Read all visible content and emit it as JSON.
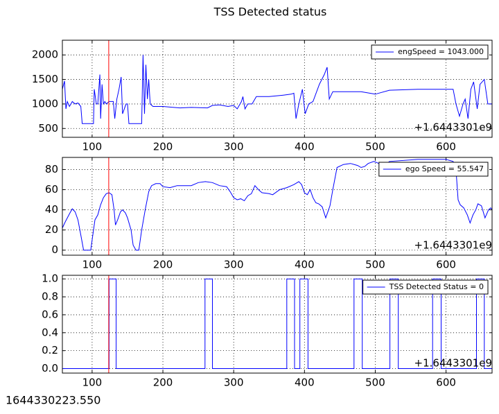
{
  "title": "TSS Detected status",
  "timestamp": "1644330223.550",
  "chart_data": [
    {
      "type": "line",
      "legend": "upper right",
      "grid": true,
      "offset_text": "+1.6443301e9",
      "xlim": [
        58,
        665
      ],
      "xticks": [
        100,
        200,
        300,
        400,
        500,
        600
      ],
      "ylim": [
        320,
        2300
      ],
      "yticks": [
        500,
        1000,
        1500,
        2000
      ],
      "vline_x": 123.5,
      "vline_color": "#ff0000",
      "series": [
        {
          "name": "engSpeed = 1043.000",
          "color": "#0000ff",
          "x": [
            58,
            61,
            63,
            65,
            68,
            72,
            76,
            80,
            84,
            86,
            87,
            102,
            103,
            106,
            108,
            111,
            112,
            114,
            116,
            118,
            120,
            124,
            130,
            132,
            135,
            138,
            141,
            143,
            148,
            150,
            152,
            156,
            159,
            170,
            172,
            174,
            176,
            178,
            180,
            182,
            186,
            200,
            224,
            240,
            263,
            270,
            280,
            292,
            300,
            305,
            311,
            313,
            316,
            320,
            326,
            332,
            350,
            370,
            381,
            385,
            388,
            392,
            397,
            401,
            406,
            412,
            421,
            428,
            432,
            435,
            440,
            460,
            480,
            500,
            520,
            560,
            600,
            610,
            614,
            619,
            624,
            627,
            631,
            635,
            639,
            644,
            648,
            654,
            659,
            662,
            665
          ],
          "values": [
            1300,
            1470,
            900,
            1050,
            950,
            1050,
            1000,
            1020,
            950,
            600,
            600,
            600,
            1300,
            1000,
            1000,
            1600,
            700,
            1400,
            1000,
            1050,
            1000,
            1050,
            1050,
            700,
            1100,
            1300,
            1550,
            800,
            1000,
            1000,
            600,
            600,
            600,
            600,
            2000,
            800,
            1800,
            1100,
            1500,
            1000,
            950,
            950,
            920,
            930,
            920,
            970,
            980,
            950,
            970,
            900,
            1050,
            1150,
            900,
            1000,
            1000,
            1150,
            1150,
            1180,
            1200,
            1220,
            700,
            1000,
            1300,
            800,
            1000,
            1050,
            1400,
            1600,
            1750,
            1100,
            1250,
            1250,
            1250,
            1200,
            1280,
            1300,
            1300,
            1300,
            1000,
            750,
            1000,
            1100,
            700,
            1300,
            1450,
            900,
            1400,
            1500,
            1000,
            1000,
            1000
          ]
        }
      ]
    },
    {
      "type": "line",
      "legend": "upper right",
      "grid": true,
      "offset_text": "+1.6443301e9",
      "xlim": [
        58,
        665
      ],
      "xticks": [
        100,
        200,
        300,
        400,
        500,
        600
      ],
      "ylim": [
        -5,
        92
      ],
      "yticks": [
        0,
        20,
        40,
        60,
        80
      ],
      "vline_x": 123.5,
      "vline_color": "#ff0000",
      "series": [
        {
          "name": "ego Speed = 55.547",
          "color": "#0000ff",
          "x": [
            58,
            62,
            68,
            72,
            76,
            80,
            84,
            88,
            98,
            100,
            104,
            108,
            112,
            116,
            120,
            124,
            128,
            131,
            133,
            136,
            140,
            143,
            147,
            150,
            155,
            158,
            162,
            166,
            170,
            175,
            180,
            184,
            190,
            196,
            200,
            210,
            220,
            240,
            250,
            260,
            270,
            280,
            290,
            295,
            300,
            305,
            310,
            315,
            320,
            325,
            330,
            335,
            340,
            350,
            355,
            365,
            375,
            385,
            392,
            396,
            400,
            404,
            408,
            412,
            416,
            420,
            425,
            430,
            436,
            440,
            446,
            455,
            465,
            475,
            480,
            485,
            490,
            498,
            505,
            510,
            520,
            560,
            600,
            610,
            614,
            617,
            620,
            625,
            630,
            634,
            638,
            642,
            645,
            650,
            655,
            660,
            663,
            665
          ],
          "values": [
            22,
            28,
            36,
            41,
            38,
            30,
            15,
            0,
            0,
            10,
            30,
            35,
            45,
            52,
            56,
            57,
            55,
            40,
            25,
            30,
            38,
            40,
            37,
            32,
            20,
            5,
            0,
            0,
            20,
            40,
            58,
            64,
            66,
            66,
            63,
            62,
            64,
            64,
            67,
            68,
            67,
            64,
            63,
            58,
            52,
            50,
            51,
            49,
            54,
            56,
            64,
            60,
            57,
            56,
            55,
            60,
            62,
            65,
            68,
            65,
            57,
            55,
            60,
            52,
            47,
            46,
            43,
            32,
            44,
            60,
            82,
            85,
            86,
            84,
            82,
            83,
            86,
            88,
            86,
            82,
            88,
            90,
            90,
            88,
            80,
            50,
            45,
            42,
            35,
            27,
            35,
            40,
            46,
            44,
            32,
            40,
            42,
            40
          ]
        }
      ]
    },
    {
      "type": "line",
      "legend": "upper right",
      "grid": true,
      "offset_text": "+1.6443301e9",
      "xlim": [
        58,
        665
      ],
      "xticks": [
        100,
        200,
        300,
        400,
        500,
        600
      ],
      "ylim": [
        -0.05,
        1.04
      ],
      "yticks": [
        {
          "value": 0,
          "label": "0.0"
        },
        {
          "value": 0.2,
          "label": "0.2"
        },
        {
          "value": 0.4,
          "label": "0.4"
        },
        {
          "value": 0.6,
          "label": "0.6"
        },
        {
          "value": 0.8,
          "label": "0.8"
        },
        {
          "value": 1,
          "label": "1.0"
        }
      ],
      "vline_x": 123.5,
      "vline_color": "#ff0000",
      "series": [
        {
          "name": "TSS Detected Status = 0",
          "color": "#0000ff",
          "x": [
            58,
            124,
            124,
            134,
            134,
            259.5,
            259.5,
            270,
            270,
            375,
            375,
            386,
            386,
            393.5,
            393.5,
            405,
            405,
            470,
            470,
            481.6,
            481.6,
            520.7,
            520.7,
            532.5,
            532.5,
            581,
            581,
            593,
            593,
            643,
            643,
            654,
            654,
            665
          ],
          "values": [
            0,
            0,
            1,
            1,
            0,
            0,
            1,
            1,
            0,
            0,
            1,
            1,
            0,
            0,
            1,
            1,
            0,
            0,
            1,
            1,
            0,
            0,
            1,
            1,
            0,
            0,
            1,
            1,
            0,
            0,
            1,
            1,
            0,
            0
          ]
        }
      ]
    }
  ]
}
